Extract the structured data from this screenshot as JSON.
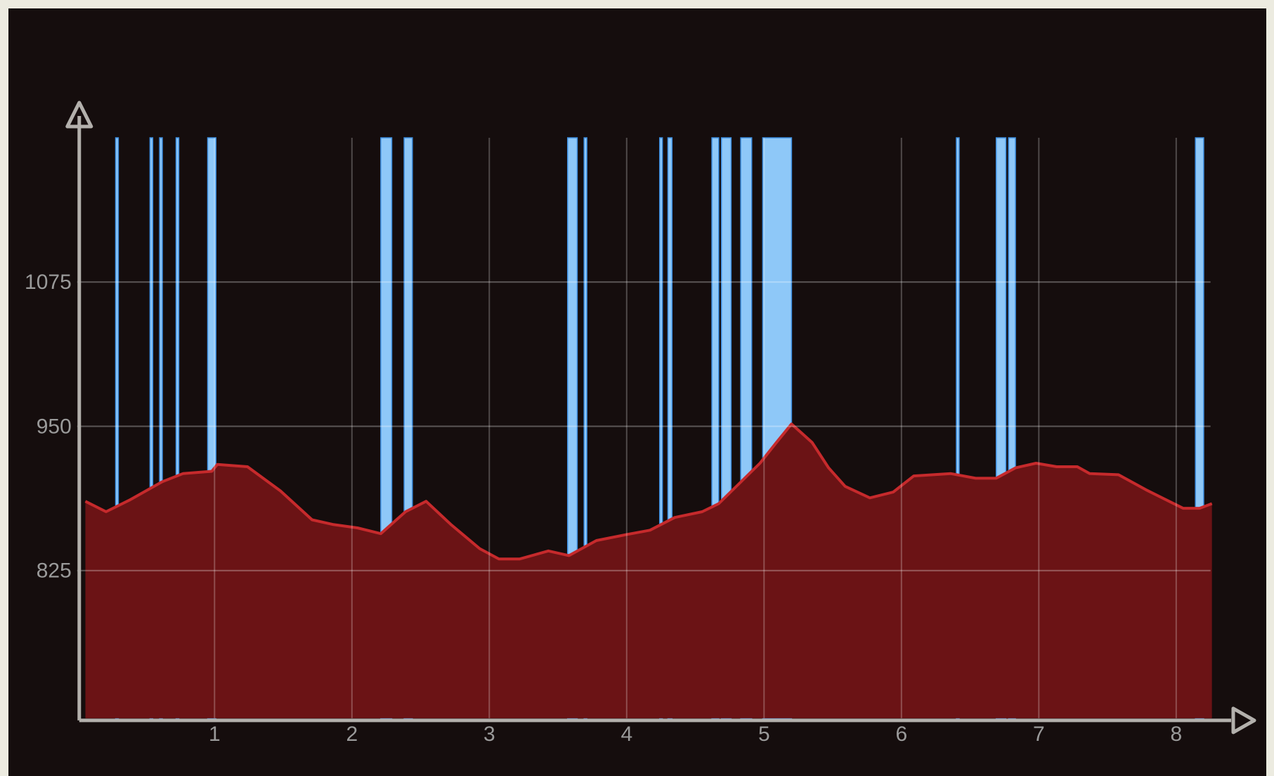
{
  "chart_data": {
    "type": "area",
    "x": [
      0.06,
      0.21,
      0.38,
      0.62,
      0.77,
      0.98,
      1.02,
      1.24,
      1.48,
      1.71,
      1.86,
      2.04,
      2.21,
      2.39,
      2.54,
      2.72,
      2.93,
      3.07,
      3.22,
      3.43,
      3.58,
      3.78,
      3.99,
      4.17,
      4.35,
      4.55,
      4.67,
      4.79,
      4.97,
      5.09,
      5.2,
      5.35,
      5.47,
      5.59,
      5.77,
      5.94,
      6.09,
      6.36,
      6.54,
      6.69,
      6.83,
      6.98,
      7.13,
      7.28,
      7.37,
      7.58,
      7.78,
      8.05,
      8.17,
      8.26
    ],
    "values": [
      885,
      876,
      886,
      902,
      909,
      911,
      917,
      915,
      894,
      869,
      865,
      862,
      857,
      876,
      885,
      865,
      844,
      835,
      835,
      842,
      838,
      851,
      856,
      860,
      871,
      876,
      883,
      897,
      918,
      936,
      952,
      936,
      914,
      898,
      888,
      893,
      907,
      909,
      905,
      905,
      914,
      918,
      915,
      915,
      909,
      908,
      895,
      879,
      879,
      883
    ],
    "color": "#6b1315",
    "line_color": "#c62a2c",
    "highlights": [
      [
        0.28,
        0.3
      ],
      [
        0.53,
        0.55
      ],
      [
        0.6,
        0.62
      ],
      [
        0.72,
        0.74
      ],
      [
        0.95,
        1.01
      ],
      [
        2.21,
        2.29
      ],
      [
        2.38,
        2.44
      ],
      [
        3.57,
        3.64
      ],
      [
        3.69,
        3.71
      ],
      [
        4.24,
        4.26
      ],
      [
        4.3,
        4.33
      ],
      [
        4.62,
        4.67
      ],
      [
        4.69,
        4.76
      ],
      [
        4.83,
        4.91
      ],
      [
        4.99,
        5.2
      ],
      [
        6.4,
        6.42
      ],
      [
        6.69,
        6.76
      ],
      [
        6.78,
        6.83
      ],
      [
        8.14,
        8.2
      ]
    ],
    "highlight_color": "#8ec8f8",
    "xlim": [
      0,
      8.25
    ],
    "xticks": [
      1,
      2,
      3,
      4,
      5,
      6,
      7,
      8
    ],
    "ylim": [
      697,
      1200
    ],
    "yticks": [
      825,
      950,
      1075
    ],
    "grid": true
  }
}
